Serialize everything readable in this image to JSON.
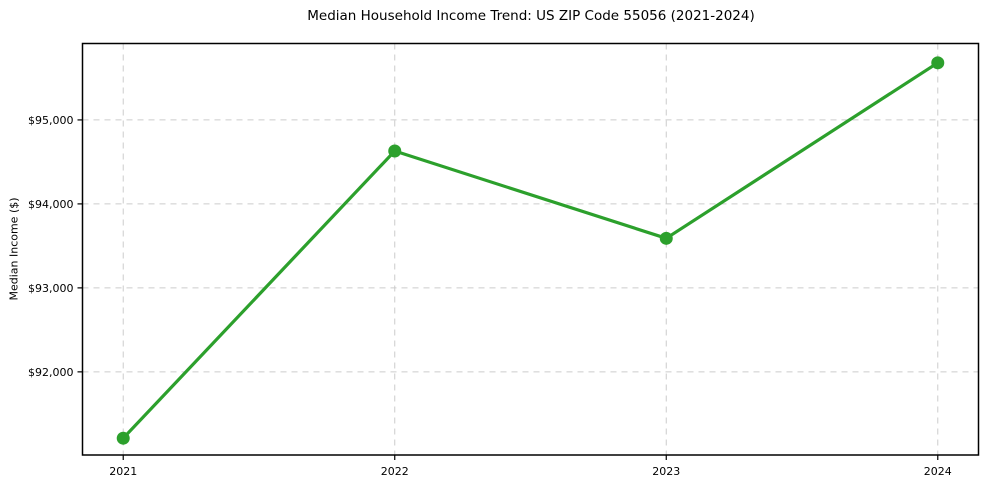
{
  "chart_data": {
    "type": "line",
    "title": "Median Household Income Trend: US ZIP Code 55056 (2021-2024)",
    "xlabel": "",
    "ylabel": "Median Income ($)",
    "x": [
      2021,
      2022,
      2023,
      2024
    ],
    "values": [
      91210,
      94630,
      93590,
      95680
    ],
    "xticks": [
      {
        "value": 2021,
        "label": "2021"
      },
      {
        "value": 2022,
        "label": "2022"
      },
      {
        "value": 2023,
        "label": "2023"
      },
      {
        "value": 2024,
        "label": "2024"
      }
    ],
    "yticks": [
      {
        "value": 92000,
        "label": "$92,000"
      },
      {
        "value": 93000,
        "label": "$93,000"
      },
      {
        "value": 94000,
        "label": "$94,000"
      },
      {
        "value": 95000,
        "label": "$95,000"
      }
    ],
    "xlim": [
      2020.85,
      2024.15
    ],
    "ylim": [
      91010,
      95910
    ],
    "grid": true,
    "grid_style": "dashed",
    "legend": "none",
    "marker": "circle",
    "colors": {
      "line": "#2ca02c",
      "grid": "#cccccc",
      "axis": "#000000",
      "text": "#000000",
      "background": "#ffffff"
    }
  }
}
